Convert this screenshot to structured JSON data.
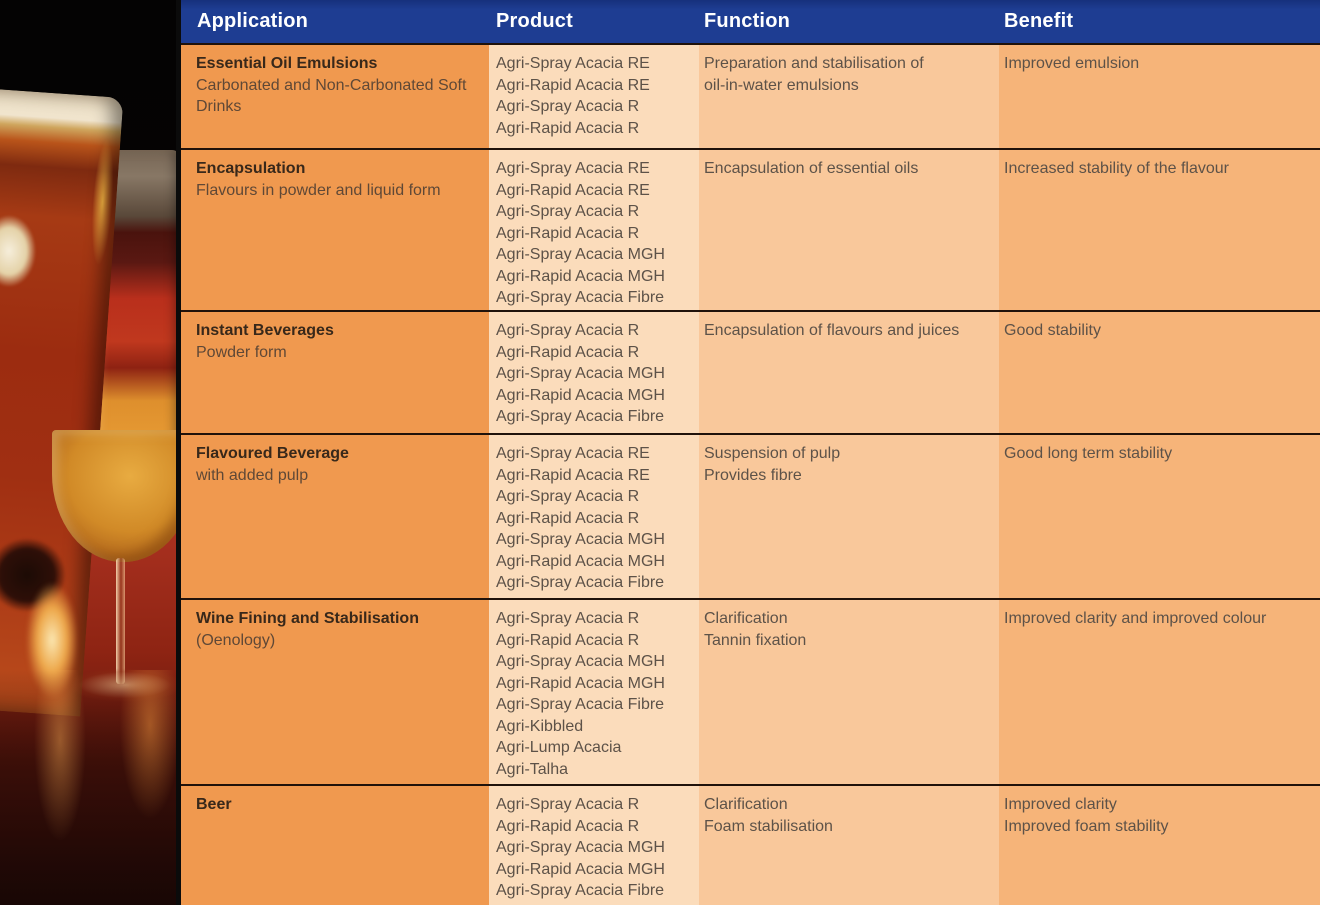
{
  "colors": {
    "header_bg": "#1e3d92",
    "header_text": "#ffffff",
    "application_col_bg": "#f0994f",
    "product_col_bg": "#fbdcbb",
    "function_col_bg": "#f9c89b",
    "benefit_col_bg": "#f6b479",
    "divider": "#20120a",
    "title_text": "#38281a",
    "subtitle_text": "#5f4836",
    "body_text": "#5d5248"
  },
  "header": {
    "columns": [
      "Application",
      "Product",
      "Function",
      "Benefit"
    ]
  },
  "rows": [
    {
      "application": {
        "title": "Essential Oil Emulsions",
        "subtitle": "Carbonated and Non-Carbonated Soft Drinks"
      },
      "products": [
        "Agri-Spray Acacia RE",
        "Agri-Rapid Acacia RE",
        "Agri-Spray Acacia R",
        "Agri-Rapid Acacia R"
      ],
      "function": [
        "Preparation and stabilisation of",
        "oil-in-water emulsions"
      ],
      "benefit": [
        "Improved emulsion"
      ]
    },
    {
      "application": {
        "title": "Encapsulation",
        "subtitle": "Flavours in powder and liquid form"
      },
      "products": [
        "Agri-Spray Acacia RE",
        "Agri-Rapid Acacia RE",
        "Agri-Spray Acacia R",
        "Agri-Rapid Acacia R",
        "Agri-Spray Acacia MGH",
        "Agri-Rapid Acacia MGH",
        "Agri-Spray Acacia Fibre"
      ],
      "function": [
        "Encapsulation of essential oils"
      ],
      "benefit": [
        "Increased stability of the flavour"
      ]
    },
    {
      "application": {
        "title": "Instant Beverages",
        "subtitle": "Powder form"
      },
      "products": [
        "Agri-Spray Acacia R",
        "Agri-Rapid Acacia R",
        "Agri-Spray Acacia MGH",
        "Agri-Rapid Acacia MGH",
        "Agri-Spray Acacia Fibre"
      ],
      "function": [
        "Encapsulation of flavours and juices"
      ],
      "benefit": [
        "Good stability"
      ]
    },
    {
      "application": {
        "title": "Flavoured Beverage",
        "subtitle": "with added pulp"
      },
      "products": [
        "Agri-Spray Acacia RE",
        "Agri-Rapid Acacia RE",
        "Agri-Spray Acacia R",
        "Agri-Rapid Acacia R",
        "Agri-Spray Acacia MGH",
        "Agri-Rapid Acacia MGH",
        "Agri-Spray Acacia Fibre"
      ],
      "function": [
        "Suspension of pulp",
        "Provides fibre"
      ],
      "benefit": [
        "Good long term stability"
      ]
    },
    {
      "application": {
        "title": "Wine Fining and Stabilisation",
        "subtitle": "(Oenology)"
      },
      "products": [
        "Agri-Spray Acacia R",
        "Agri-Rapid Acacia R",
        "Agri-Spray Acacia MGH",
        "Agri-Rapid Acacia MGH",
        "Agri-Spray Acacia Fibre",
        "Agri-Kibbled",
        "Agri-Lump Acacia",
        "Agri-Talha"
      ],
      "function": [
        "Clarification",
        "Tannin fixation"
      ],
      "benefit": [
        "Improved clarity and improved colour"
      ]
    },
    {
      "application": {
        "title": "Beer",
        "subtitle": ""
      },
      "products": [
        "Agri-Spray Acacia R",
        "Agri-Rapid Acacia R",
        "Agri-Spray Acacia MGH",
        "Agri-Rapid Acacia MGH",
        "Agri-Spray Acacia Fibre"
      ],
      "function": [
        "Clarification",
        "Foam stabilisation"
      ],
      "benefit": [
        "Improved clarity",
        "Improved foam stability"
      ]
    }
  ]
}
